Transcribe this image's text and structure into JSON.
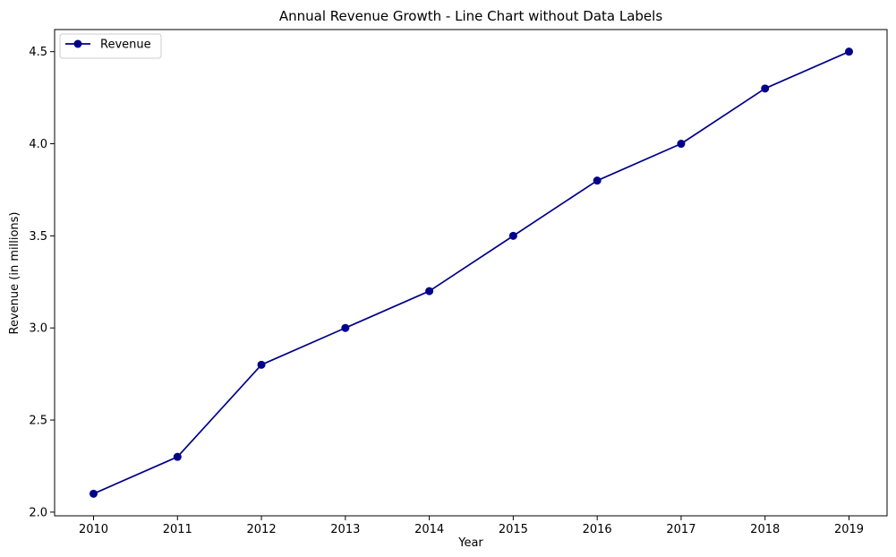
{
  "chart_data": {
    "type": "line",
    "title": "Annual Revenue Growth - Line Chart without Data Labels",
    "xlabel": "Year",
    "ylabel": "Revenue (in millions)",
    "categories": [
      "2010",
      "2011",
      "2012",
      "2013",
      "2014",
      "2015",
      "2016",
      "2017",
      "2018",
      "2019"
    ],
    "series": [
      {
        "name": "Revenue",
        "values": [
          2.1,
          2.3,
          2.8,
          3.0,
          3.2,
          3.5,
          3.8,
          4.0,
          4.3,
          4.5
        ],
        "color": "#00008b",
        "marker": "circle"
      }
    ],
    "yticks": [
      "2.0",
      "2.5",
      "3.0",
      "3.5",
      "4.0",
      "4.5"
    ],
    "ylim": [
      1.98,
      4.62
    ],
    "grid": false,
    "legend_position": "top-left"
  }
}
